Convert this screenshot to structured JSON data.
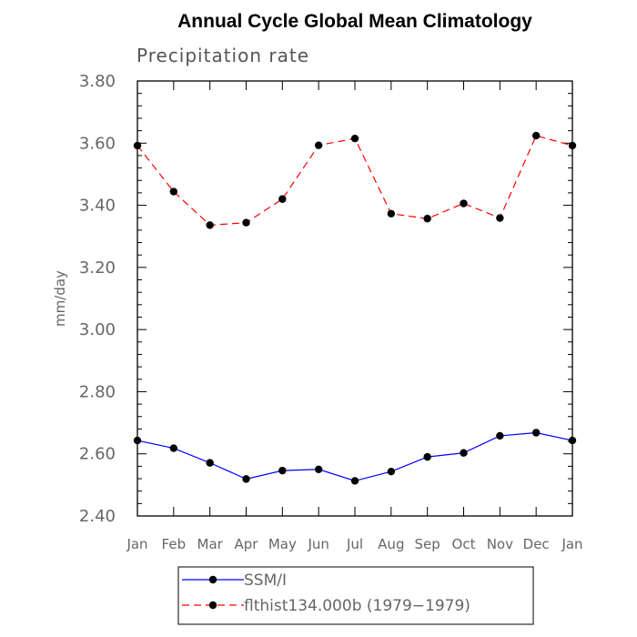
{
  "chart_data": {
    "type": "line",
    "title": "Annual Cycle Global Mean Climatology",
    "subtitle": "Precipitation rate",
    "ylabel": "mm/day",
    "xlabel": "",
    "categories": [
      "Jan",
      "Feb",
      "Mar",
      "Apr",
      "May",
      "Jun",
      "Jul",
      "Aug",
      "Sep",
      "Oct",
      "Nov",
      "Dec",
      "Jan"
    ],
    "ylim": [
      2.4,
      3.8
    ],
    "yticks": [
      "2.40",
      "2.60",
      "2.80",
      "3.00",
      "3.20",
      "3.40",
      "3.60",
      "3.80"
    ],
    "series": [
      {
        "name": "SSM/I",
        "color": "#0000ff",
        "dash": "solid",
        "values": [
          2.643,
          2.618,
          2.571,
          2.519,
          2.546,
          2.55,
          2.513,
          2.543,
          2.59,
          2.603,
          2.658,
          2.668,
          2.643
        ]
      },
      {
        "name": "flthist134.000b (1979−1979)",
        "color": "#ff0000",
        "dash": "dashed",
        "values": [
          3.592,
          3.444,
          3.336,
          3.344,
          3.42,
          3.593,
          3.615,
          3.373,
          3.357,
          3.406,
          3.359,
          3.624,
          3.592
        ]
      }
    ]
  }
}
